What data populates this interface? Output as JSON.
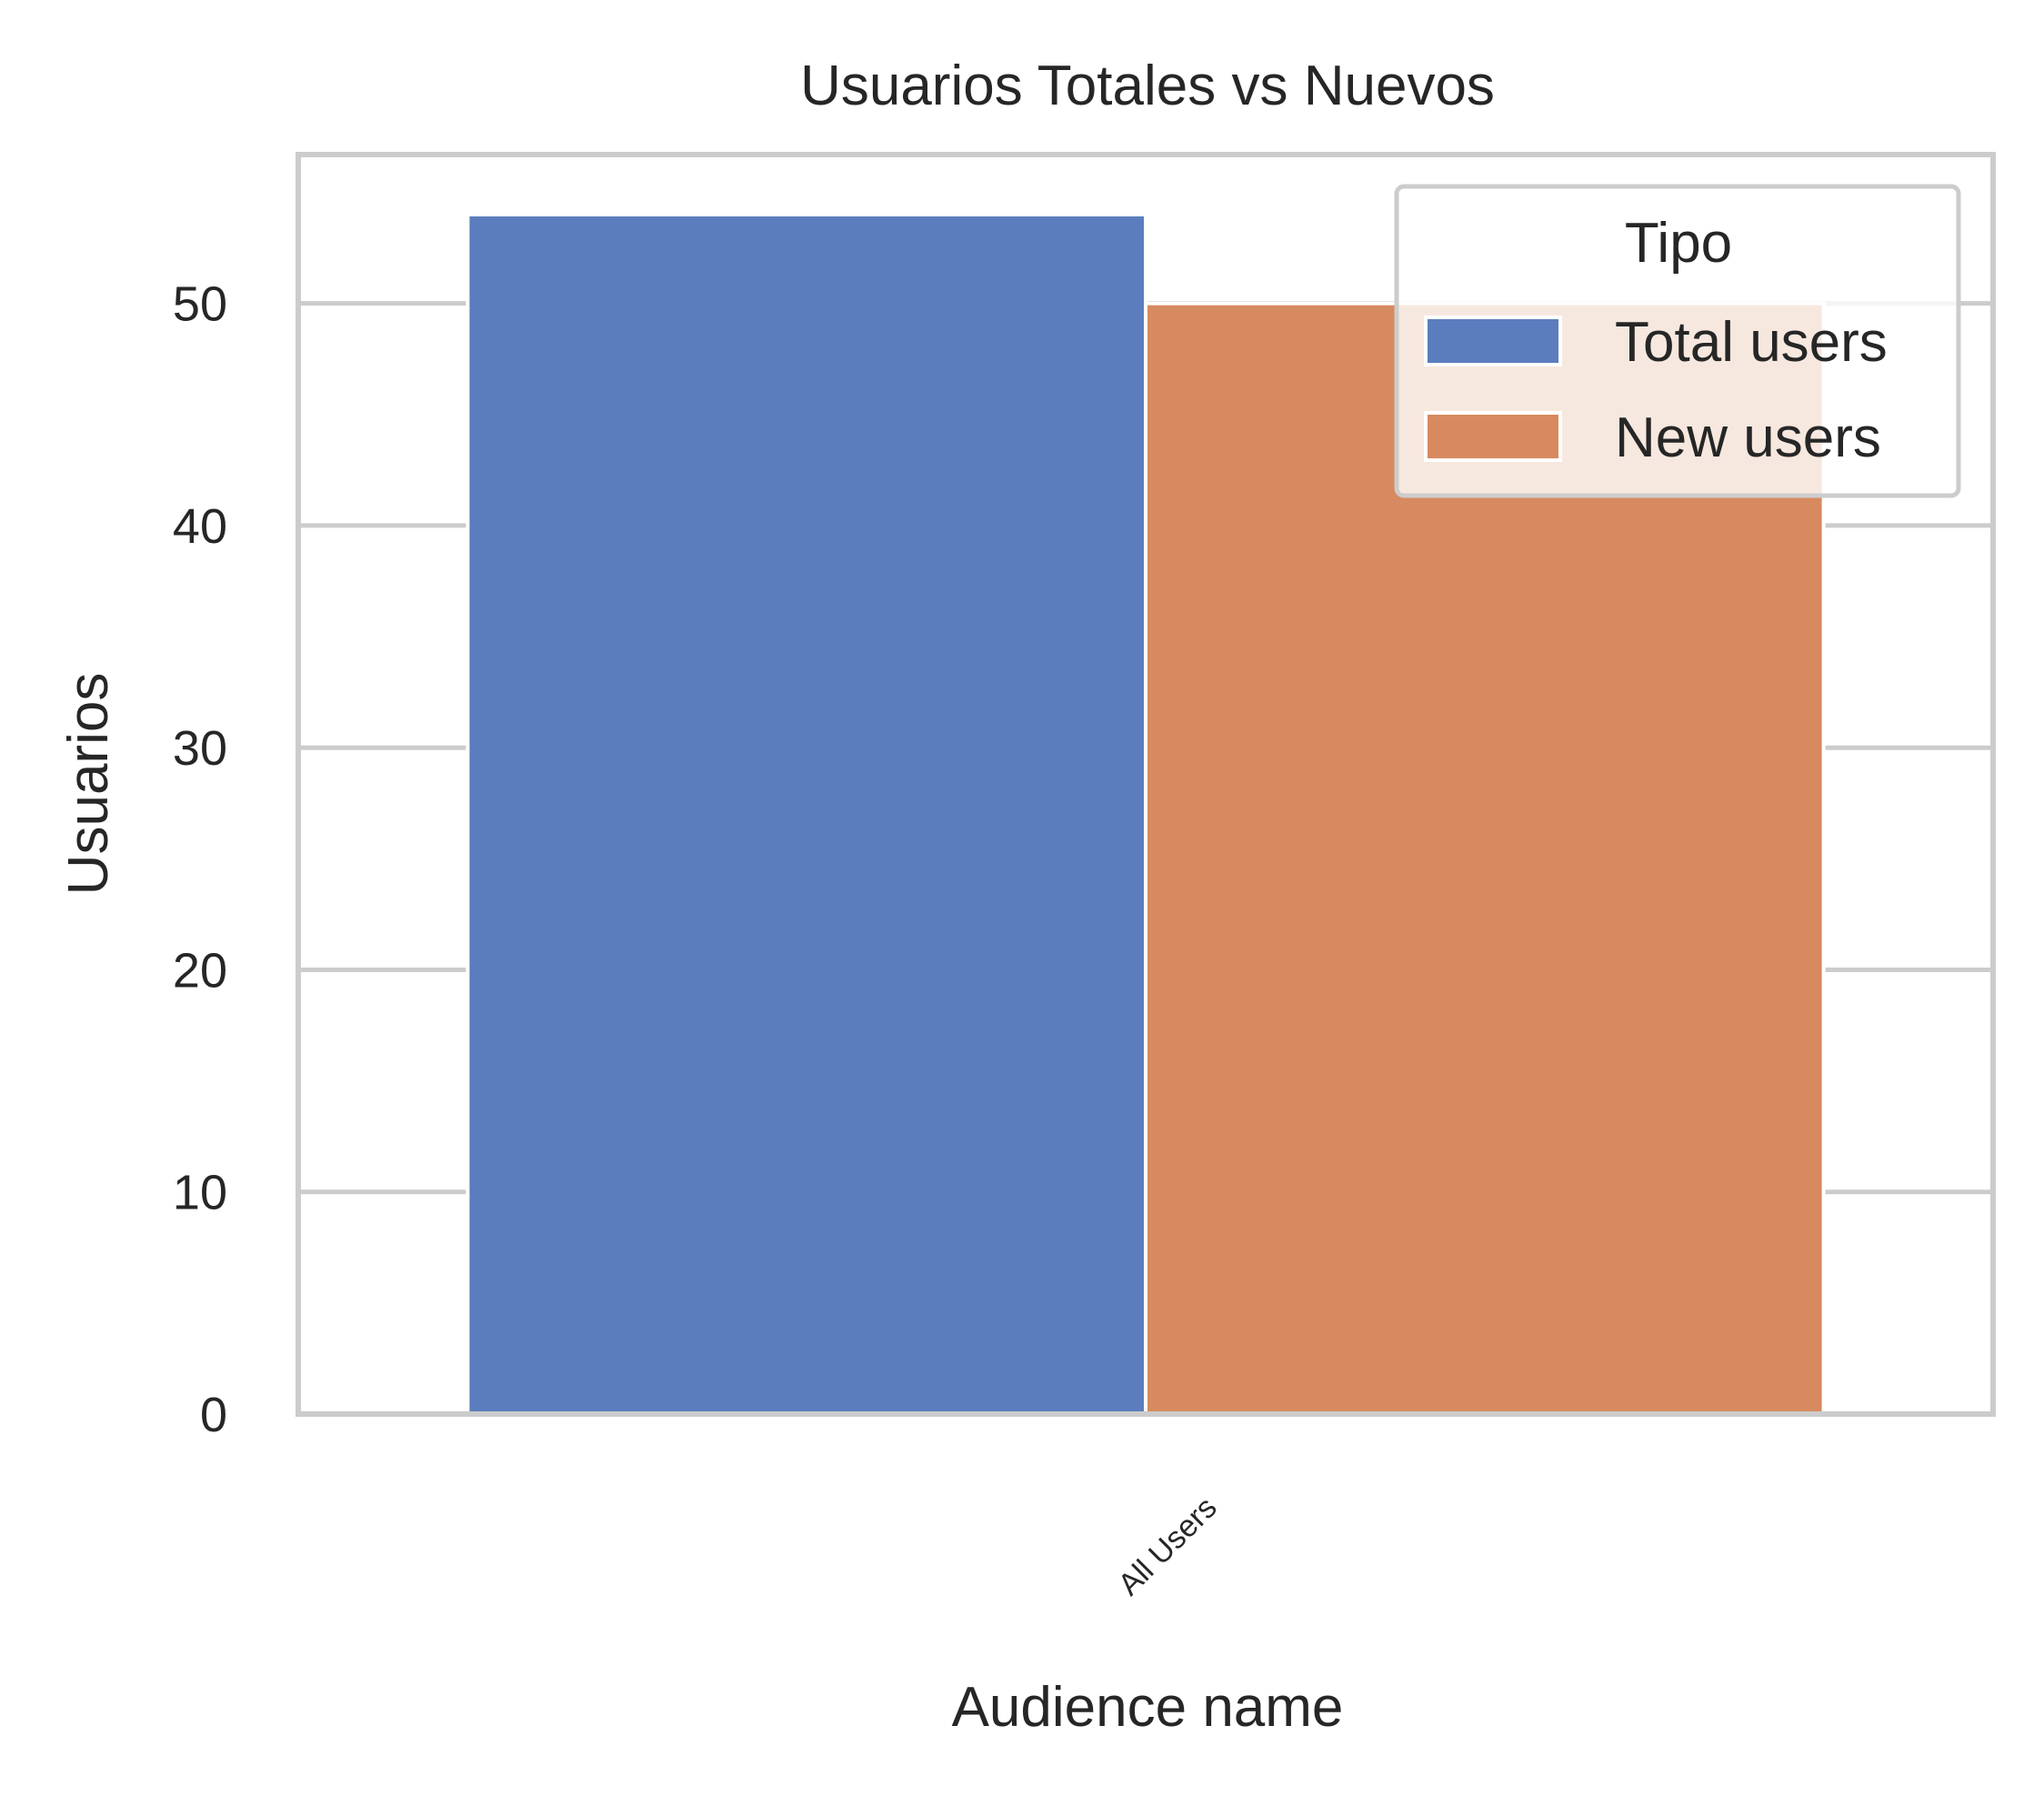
{
  "chart_data": {
    "type": "bar",
    "title": "Usuarios Totales vs Nuevos",
    "xlabel": "Audience name",
    "ylabel": "Usuarios",
    "categories": [
      "All Users"
    ],
    "series": [
      {
        "name": "Total users",
        "values": [
          54
        ],
        "color": "#5b7dbd"
      },
      {
        "name": "New users",
        "values": [
          50
        ],
        "color": "#d78a5f"
      }
    ],
    "ylim": [
      0,
      56.7
    ],
    "yticks": [
      0,
      10,
      20,
      30,
      40,
      50
    ],
    "grid": true,
    "legend": {
      "title": "Tipo",
      "placement": "top-right"
    }
  }
}
